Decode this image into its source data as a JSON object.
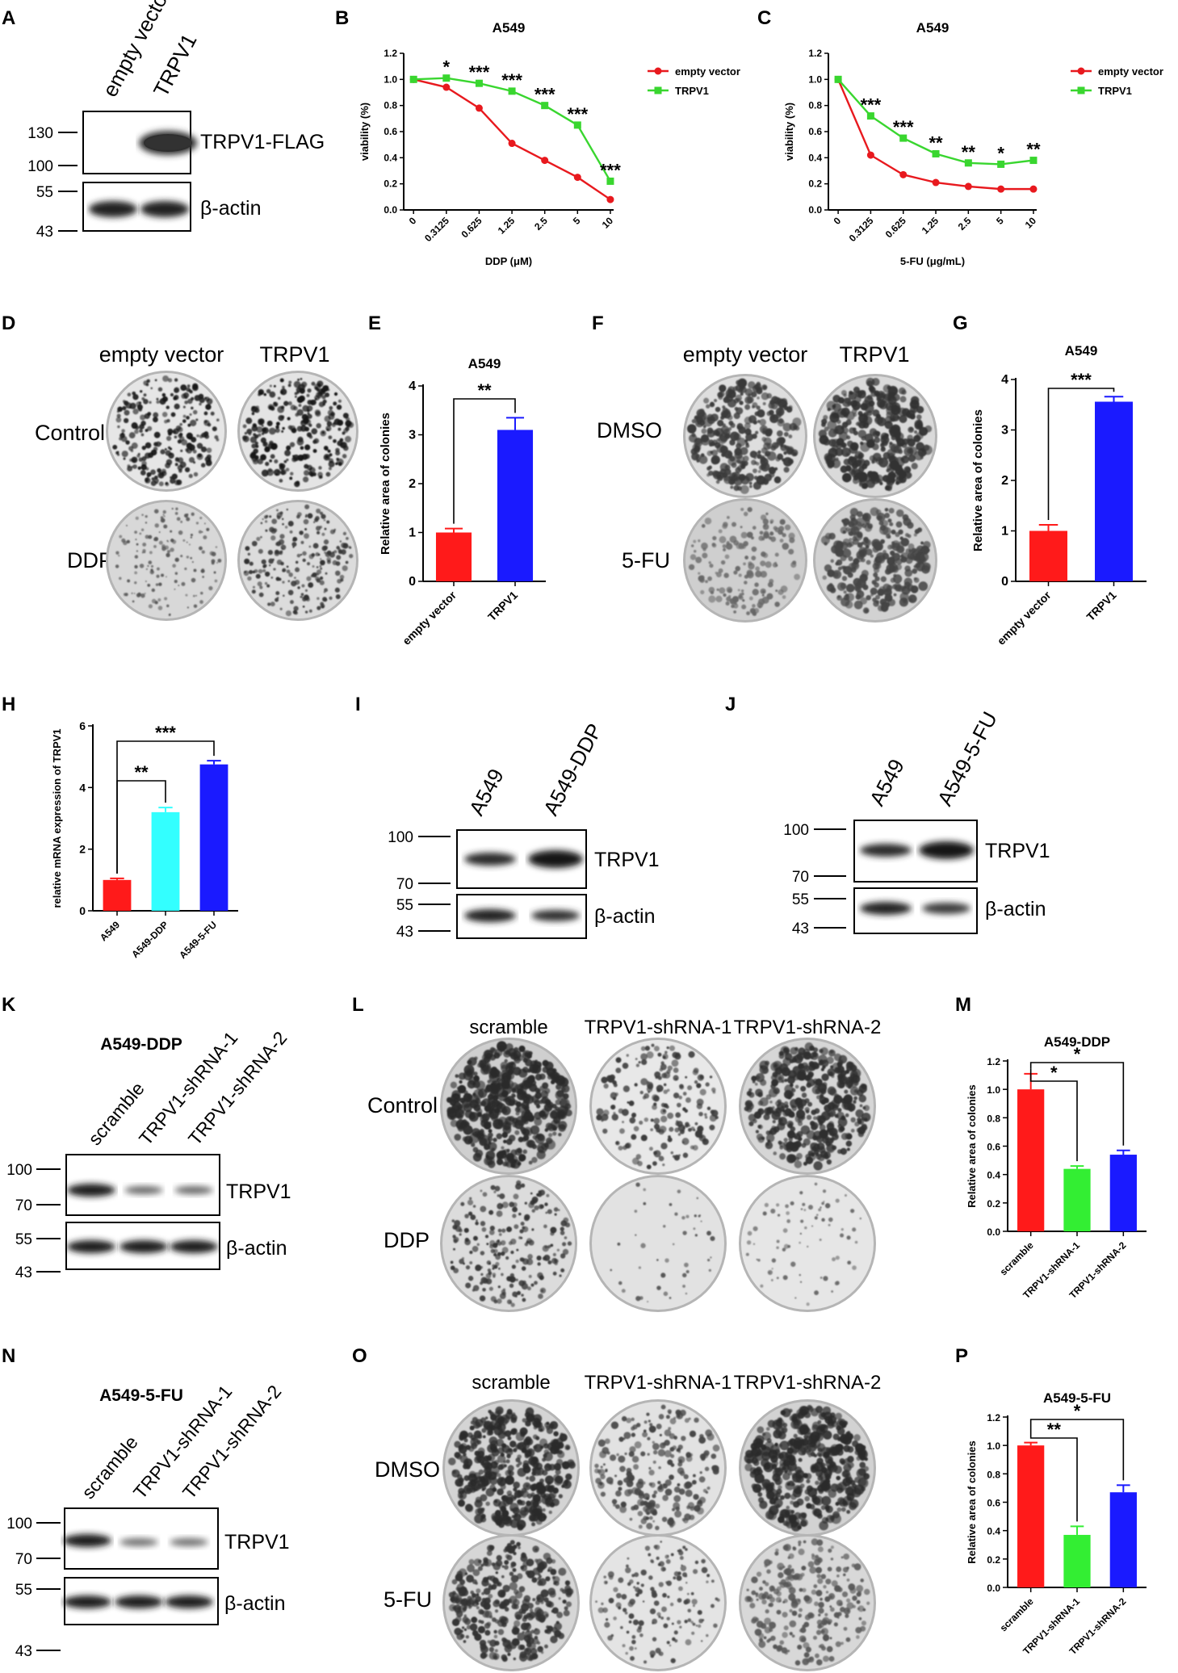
{
  "panels": {
    "A": {
      "label": "A",
      "lanes": [
        "empty vector",
        "TRPV1"
      ],
      "proteins": [
        "TRPV1-FLAG",
        "β-actin"
      ],
      "mw_top": [
        "130",
        "100"
      ],
      "mw_bottom": [
        "55",
        "43"
      ]
    },
    "B": {
      "label": "B"
    },
    "C": {
      "label": "C"
    },
    "D": {
      "label": "D",
      "columns": [
        "empty vector",
        "TRPV1"
      ],
      "rows": [
        "Control",
        "DDP"
      ]
    },
    "E": {
      "label": "E"
    },
    "F": {
      "label": "F",
      "columns": [
        "empty vector",
        "TRPV1"
      ],
      "rows": [
        "DMSO",
        "5-FU"
      ]
    },
    "G": {
      "label": "G"
    },
    "H": {
      "label": "H"
    },
    "I": {
      "label": "I",
      "lanes": [
        "A549",
        "A549-DDP"
      ],
      "proteins": [
        "TRPV1",
        "β-actin"
      ],
      "mw_top": [
        "100",
        "70"
      ],
      "mw_bottom": [
        "55",
        "43"
      ]
    },
    "J": {
      "label": "J",
      "lanes": [
        "A549",
        "A549-5-FU"
      ],
      "proteins": [
        "TRPV1",
        "β-actin"
      ],
      "mw_top": [
        "100",
        "70"
      ],
      "mw_bottom": [
        "55",
        "43"
      ]
    },
    "K": {
      "label": "K",
      "title": "A549-DDP",
      "lanes": [
        "scramble",
        "TRPV1-shRNA-1",
        "TRPV1-shRNA-2"
      ],
      "proteins": [
        "TRPV1",
        "β-actin"
      ],
      "mw_top": [
        "100",
        "70"
      ],
      "mw_bottom": [
        "55",
        "43"
      ]
    },
    "L": {
      "label": "L",
      "columns": [
        "scramble",
        "TRPV1-shRNA-1",
        "TRPV1-shRNA-2"
      ],
      "rows": [
        "Control",
        "DDP"
      ]
    },
    "M": {
      "label": "M"
    },
    "N": {
      "label": "N",
      "title": "A549-5-FU",
      "lanes": [
        "scramble",
        "TRPV1-shRNA-1",
        "TRPV1-shRNA-2"
      ],
      "proteins": [
        "TRPV1",
        "β-actin"
      ],
      "mw_top": [
        "100",
        "70"
      ],
      "mw_bottom": [
        "55",
        "43"
      ]
    },
    "O": {
      "label": "O",
      "columns": [
        "scramble",
        "TRPV1-shRNA-1",
        "TRPV1-shRNA-2"
      ],
      "rows": [
        "DMSO",
        "5-FU"
      ]
    },
    "P": {
      "label": "P"
    }
  },
  "colors": {
    "red": "#ff1a1a",
    "green": "#33ee33",
    "blue": "#1a1aff",
    "cyan": "#33ffff",
    "line_red": "#e8191e",
    "line_green": "#39d62f"
  },
  "chart_data": [
    {
      "id": "B",
      "type": "line",
      "title": "A549",
      "xlabel": "DDP (μM)",
      "ylabel": "viability (%)",
      "x": [
        "0",
        "0.3125",
        "0.625",
        "1.25",
        "2.5",
        "5",
        "10"
      ],
      "ylim": [
        0,
        1.2
      ],
      "yticks": [
        "0.0",
        "0.2",
        "0.4",
        "0.6",
        "0.8",
        "1.0",
        "1.2"
      ],
      "series": [
        {
          "name": "empty vector",
          "values": [
            1.0,
            0.94,
            0.78,
            0.51,
            0.38,
            0.25,
            0.08
          ]
        },
        {
          "name": "TRPV1",
          "values": [
            1.0,
            1.01,
            0.97,
            0.91,
            0.8,
            0.65,
            0.22
          ]
        }
      ],
      "annotations": [
        "",
        "*",
        "***",
        "***",
        "***",
        "***",
        "***"
      ],
      "legend": "top-right"
    },
    {
      "id": "C",
      "type": "line",
      "title": "A549",
      "xlabel": "5-FU (μg/mL)",
      "ylabel": "viability (%)",
      "x": [
        "0",
        "0.3125",
        "0.625",
        "1.25",
        "2.5",
        "5",
        "10"
      ],
      "ylim": [
        0,
        1.2
      ],
      "yticks": [
        "0.0",
        "0.2",
        "0.4",
        "0.6",
        "0.8",
        "1.0",
        "1.2"
      ],
      "series": [
        {
          "name": "empty vector",
          "values": [
            1.0,
            0.42,
            0.27,
            0.21,
            0.18,
            0.16,
            0.16
          ]
        },
        {
          "name": "TRPV1",
          "values": [
            1.0,
            0.72,
            0.55,
            0.43,
            0.36,
            0.35,
            0.38
          ]
        }
      ],
      "annotations": [
        "",
        "***",
        "***",
        "**",
        "**",
        "*",
        "**"
      ],
      "legend": "top-right"
    },
    {
      "id": "E",
      "type": "bar",
      "title": "A549",
      "ylabel": "Relative area of colonies",
      "categories": [
        "empty vector",
        "TRPV1"
      ],
      "values": [
        1.0,
        3.1
      ],
      "errors": [
        0.08,
        0.25
      ],
      "ylim": [
        0,
        4
      ],
      "yticks": [
        "0",
        "1",
        "2",
        "3",
        "4"
      ],
      "comparisons": [
        {
          "a": 0,
          "b": 1,
          "label": "**"
        }
      ]
    },
    {
      "id": "G",
      "type": "bar",
      "title": "A549",
      "ylabel": "Relative area of colonies",
      "categories": [
        "empty vector",
        "TRPV1"
      ],
      "values": [
        1.0,
        3.56
      ],
      "errors": [
        0.12,
        0.1
      ],
      "ylim": [
        0,
        4
      ],
      "yticks": [
        "0",
        "1",
        "2",
        "3",
        "4"
      ],
      "comparisons": [
        {
          "a": 0,
          "b": 1,
          "label": "***"
        }
      ]
    },
    {
      "id": "H",
      "type": "bar",
      "title": "",
      "ylabel": "relative mRNA expression of TRPV1",
      "categories": [
        "A549",
        "A549-DDP",
        "A549-5-FU"
      ],
      "values": [
        1.0,
        3.2,
        4.75
      ],
      "errors": [
        0.05,
        0.15,
        0.12
      ],
      "ylim": [
        0,
        6
      ],
      "yticks": [
        "0",
        "2",
        "4",
        "6"
      ],
      "comparisons": [
        {
          "a": 0,
          "b": 1,
          "label": "**"
        },
        {
          "a": 0,
          "b": 2,
          "label": "***"
        }
      ]
    },
    {
      "id": "M",
      "type": "bar",
      "title": "A549-DDP",
      "ylabel": "Relative area of colonies",
      "categories": [
        "scramble",
        "TRPV1-shRNA-1",
        "TRPV1-shRNA-2"
      ],
      "values": [
        1.0,
        0.44,
        0.54
      ],
      "errors": [
        0.11,
        0.02,
        0.03
      ],
      "ylim": [
        0,
        1.2
      ],
      "yticks": [
        "0.0",
        "0.2",
        "0.4",
        "0.6",
        "0.8",
        "1.0",
        "1.2"
      ],
      "comparisons": [
        {
          "a": 0,
          "b": 1,
          "label": "*"
        },
        {
          "a": 0,
          "b": 2,
          "label": "*"
        }
      ]
    },
    {
      "id": "P",
      "type": "bar",
      "title": "A549-5-FU",
      "ylabel": "Relative area of colonies",
      "categories": [
        "scramble",
        "TRPV1-shRNA-1",
        "TRPV1-shRNA-2"
      ],
      "values": [
        1.0,
        0.37,
        0.67
      ],
      "errors": [
        0.02,
        0.06,
        0.05
      ],
      "ylim": [
        0,
        1.2
      ],
      "yticks": [
        "0.0",
        "0.2",
        "0.4",
        "0.6",
        "0.8",
        "1.0",
        "1.2"
      ],
      "comparisons": [
        {
          "a": 0,
          "b": 1,
          "label": "**"
        },
        {
          "a": 0,
          "b": 2,
          "label": "*"
        }
      ]
    }
  ]
}
